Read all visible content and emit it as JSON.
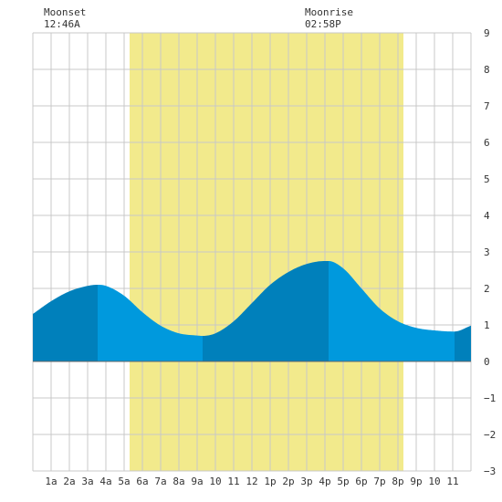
{
  "header": {
    "moonset_label": "Moonset",
    "moonset_time": "12:46A",
    "moonrise_label": "Moonrise",
    "moonrise_time": "02:58P"
  },
  "colors": {
    "background": "#ffffff",
    "daylight": "#f2ea8c",
    "grid": "#c8c8c8",
    "tide_light": "#0099dd",
    "tide_dark": "#0080bb",
    "text": "#333333"
  },
  "chart_data": {
    "type": "area",
    "title": "",
    "xlabel": "",
    "ylabel": "",
    "x_range_hours": [
      0,
      24
    ],
    "ylim": [
      -3,
      9
    ],
    "y_ticks": [
      -3,
      -2,
      -1,
      0,
      1,
      2,
      3,
      4,
      5,
      6,
      7,
      8,
      9
    ],
    "x_ticks": [
      {
        "hour": 1,
        "label": "1a"
      },
      {
        "hour": 2,
        "label": "2a"
      },
      {
        "hour": 3,
        "label": "3a"
      },
      {
        "hour": 4,
        "label": "4a"
      },
      {
        "hour": 5,
        "label": "5a"
      },
      {
        "hour": 6,
        "label": "6a"
      },
      {
        "hour": 7,
        "label": "7a"
      },
      {
        "hour": 8,
        "label": "8a"
      },
      {
        "hour": 9,
        "label": "9a"
      },
      {
        "hour": 10,
        "label": "10"
      },
      {
        "hour": 11,
        "label": "11"
      },
      {
        "hour": 12,
        "label": "12"
      },
      {
        "hour": 13,
        "label": "1p"
      },
      {
        "hour": 14,
        "label": "2p"
      },
      {
        "hour": 15,
        "label": "3p"
      },
      {
        "hour": 16,
        "label": "4p"
      },
      {
        "hour": 17,
        "label": "5p"
      },
      {
        "hour": 18,
        "label": "6p"
      },
      {
        "hour": 19,
        "label": "7p"
      },
      {
        "hour": 20,
        "label": "8p"
      },
      {
        "hour": 21,
        "label": "9p"
      },
      {
        "hour": 22,
        "label": "10"
      },
      {
        "hour": 23,
        "label": "11"
      }
    ],
    "daylight_hours": [
      5.3,
      20.3
    ],
    "tide_extremes": [
      {
        "hour": 3.55,
        "height": 2.1,
        "kind": "high"
      },
      {
        "hour": 9.3,
        "height": 0.7,
        "kind": "low"
      },
      {
        "hour": 16.2,
        "height": 2.75,
        "kind": "high"
      },
      {
        "hour": 23.1,
        "height": 0.82,
        "kind": "low"
      }
    ],
    "tide_series": {
      "hours": [
        0,
        1,
        2,
        3,
        3.55,
        4,
        5,
        6,
        7,
        8,
        9,
        9.3,
        10,
        11,
        12,
        13,
        14,
        15,
        16,
        16.2,
        17,
        18,
        19,
        20,
        21,
        22,
        23,
        23.1,
        24
      ],
      "heights": [
        1.3,
        1.65,
        1.92,
        2.07,
        2.1,
        2.07,
        1.8,
        1.35,
        0.98,
        0.77,
        0.71,
        0.7,
        0.77,
        1.1,
        1.6,
        2.1,
        2.45,
        2.67,
        2.75,
        2.75,
        2.55,
        2.0,
        1.45,
        1.1,
        0.92,
        0.85,
        0.82,
        0.82,
        0.98
      ]
    },
    "shading_breaks_hours": [
      0,
      3.55,
      9.3,
      16.2,
      23.1,
      24
    ]
  }
}
